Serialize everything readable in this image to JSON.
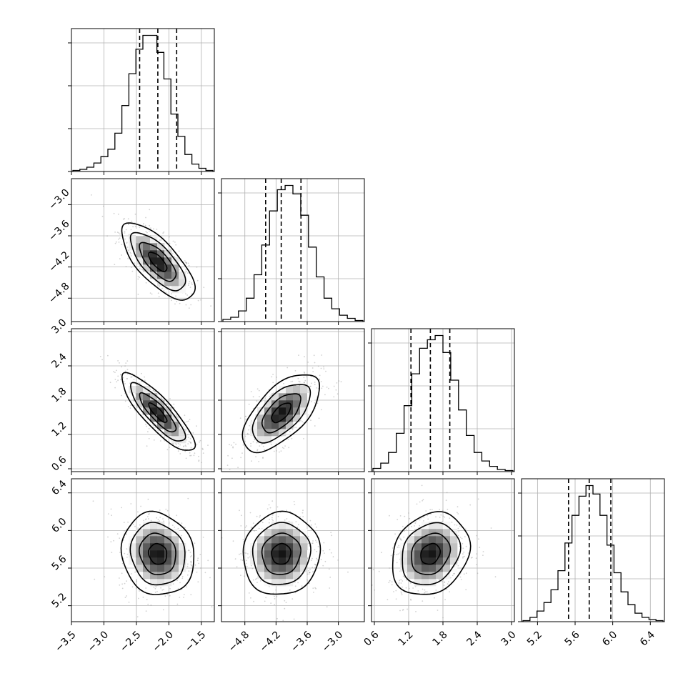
{
  "chart_data": {
    "type": "corner",
    "dims": [
      {
        "range": [
          -3.5,
          -1.3
        ],
        "ticks": [
          -3.5,
          -3.0,
          -2.5,
          -2.0,
          -1.5
        ],
        "tick_labels": [
          "−3.5",
          "−3.0",
          "−2.5",
          "−2.0",
          "−1.5"
        ],
        "quantiles": [
          -2.45,
          -2.17,
          -1.88
        ],
        "hist_counts": [
          1,
          2,
          4,
          8,
          14,
          21,
          36,
          62,
          92,
          115,
          128,
          128,
          112,
          87,
          54,
          33,
          16,
          7,
          3,
          1
        ]
      },
      {
        "range": [
          -5.25,
          -2.5
        ],
        "ticks": [
          -4.8,
          -4.2,
          -3.6,
          -3.0
        ],
        "tick_labels": [
          "−4.8",
          "−4.2",
          "−3.6",
          "−3.0"
        ],
        "quantiles": [
          -4.4,
          -4.1,
          -3.72
        ],
        "hist_counts": [
          2,
          4,
          10,
          22,
          44,
          72,
          104,
          124,
          128,
          120,
          100,
          70,
          42,
          22,
          12,
          6,
          3,
          1
        ]
      },
      {
        "range": [
          0.55,
          3.05
        ],
        "ticks": [
          0.6,
          1.2,
          1.8,
          2.4,
          3.0
        ],
        "tick_labels": [
          "0.6",
          "1.2",
          "1.8",
          "2.4",
          "3.0"
        ],
        "quantiles": [
          1.24,
          1.58,
          1.92
        ],
        "hist_counts": [
          3,
          8,
          18,
          36,
          62,
          92,
          116,
          124,
          128,
          112,
          86,
          58,
          34,
          18,
          10,
          5,
          2,
          1
        ]
      },
      {
        "range": [
          5.03,
          6.55
        ],
        "ticks": [
          5.2,
          5.6,
          6.0,
          6.4
        ],
        "tick_labels": [
          "5.2",
          "5.6",
          "6.0",
          "6.4"
        ],
        "quantiles": [
          5.53,
          5.75,
          5.98
        ],
        "hist_counts": [
          1,
          4,
          10,
          18,
          30,
          48,
          74,
          100,
          118,
          128,
          120,
          100,
          72,
          46,
          28,
          16,
          8,
          4,
          2,
          1
        ]
      }
    ],
    "pairs": [
      {
        "row": 1,
        "col": 0,
        "center": [
          -2.17,
          -4.1
        ],
        "sd": [
          0.28,
          0.37
        ],
        "corr": -0.72
      },
      {
        "row": 2,
        "col": 0,
        "center": [
          -2.17,
          1.58
        ],
        "sd": [
          0.28,
          0.34
        ],
        "corr": -0.85
      },
      {
        "row": 2,
        "col": 1,
        "center": [
          -4.1,
          1.58
        ],
        "sd": [
          0.37,
          0.34
        ],
        "corr": 0.62
      },
      {
        "row": 3,
        "col": 0,
        "center": [
          -2.17,
          5.75
        ],
        "sd": [
          0.28,
          0.22
        ],
        "corr": -0.1
      },
      {
        "row": 3,
        "col": 1,
        "center": [
          -4.1,
          5.75
        ],
        "sd": [
          0.37,
          0.22
        ],
        "corr": 0.05
      },
      {
        "row": 3,
        "col": 2,
        "center": [
          1.58,
          5.75
        ],
        "sd": [
          0.34,
          0.22
        ],
        "corr": 0.2
      }
    ],
    "contour_levels_sigma": [
      0.5,
      1.0,
      1.5,
      2.0
    ],
    "grid": true
  }
}
